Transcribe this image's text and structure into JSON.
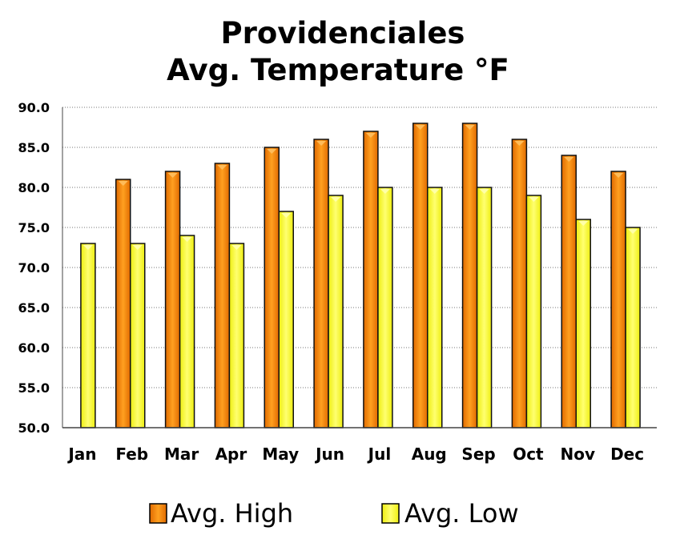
{
  "chart_data": {
    "type": "bar",
    "title": [
      "Providenciales",
      "Avg. Temperature °F"
    ],
    "categories": [
      "Jan",
      "Feb",
      "Mar",
      "Apr",
      "May",
      "Jun",
      "Jul",
      "Aug",
      "Sep",
      "Oct",
      "Nov",
      "Dec"
    ],
    "series": [
      {
        "name": "Avg. High",
        "color": "#ff8a00",
        "values": [
          50,
          81,
          82,
          83,
          85,
          86,
          87,
          88,
          88,
          86,
          84,
          82
        ]
      },
      {
        "name": "Avg. Low",
        "color": "#ffff33",
        "values": [
          73,
          73,
          74,
          73,
          77,
          79,
          80,
          80,
          80,
          79,
          76,
          75
        ]
      }
    ],
    "ylim": [
      50,
      90
    ],
    "yticks": [
      "50.0",
      "55.0",
      "60.0",
      "65.0",
      "70.0",
      "75.0",
      "80.0",
      "85.0",
      "90.0"
    ],
    "grid": true,
    "legend": "bottom"
  }
}
